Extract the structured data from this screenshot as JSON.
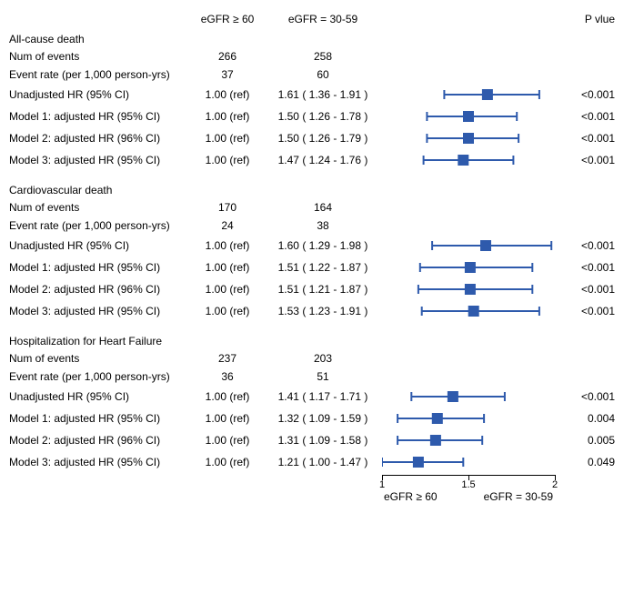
{
  "headers": {
    "col1": "",
    "col2": "eGFR ≥ 60",
    "col3": "eGFR = 30-59",
    "col4": "",
    "col5": "P vlue"
  },
  "forest_axis": {
    "xmin": 1.0,
    "xmax": 2.0,
    "ticks": [
      1,
      1.5,
      2
    ],
    "tick_labels": [
      "1",
      "1.5",
      "2"
    ],
    "left_caption": "eGFR ≥ 60",
    "right_caption": "eGFR = 30-59",
    "line_color": "#000000",
    "series_color": "#2e5aac",
    "box_size": 12,
    "cap_height": 10,
    "line_width": 2
  },
  "sections": [
    {
      "title": "All-cause death",
      "num_events_label": "Num of events",
      "num_events": {
        "ref": "266",
        "grp": "258"
      },
      "rate_label": "Event rate (per 1,000 person-yrs)",
      "rate": {
        "ref": "37",
        "grp": "60"
      },
      "rows": [
        {
          "label": "Unadjusted HR (95% CI)",
          "ref": "1.00 (ref)",
          "hr_text": "1.61 ( 1.36 - 1.91 )",
          "pt": 1.61,
          "lo": 1.36,
          "hi": 1.91,
          "p": "<0.001"
        },
        {
          "label": "Model 1: adjusted HR (95% CI)",
          "ref": "1.00 (ref)",
          "hr_text": "1.50 ( 1.26 - 1.78 )",
          "pt": 1.5,
          "lo": 1.26,
          "hi": 1.78,
          "p": "<0.001"
        },
        {
          "label": "Model 2: adjusted HR (96% CI)",
          "ref": "1.00 (ref)",
          "hr_text": "1.50 ( 1.26 - 1.79 )",
          "pt": 1.5,
          "lo": 1.26,
          "hi": 1.79,
          "p": "<0.001"
        },
        {
          "label": "Model 3: adjusted HR (95% CI)",
          "ref": "1.00 (ref)",
          "hr_text": "1.47 ( 1.24 - 1.76 )",
          "pt": 1.47,
          "lo": 1.24,
          "hi": 1.76,
          "p": "<0.001"
        }
      ]
    },
    {
      "title": "Cardiovascular death",
      "num_events_label": "Num of events",
      "num_events": {
        "ref": "170",
        "grp": "164"
      },
      "rate_label": "Event rate (per 1,000 person-yrs)",
      "rate": {
        "ref": "24",
        "grp": "38"
      },
      "rows": [
        {
          "label": "Unadjusted HR (95% CI)",
          "ref": "1.00 (ref)",
          "hr_text": "1.60 ( 1.29 - 1.98 )",
          "pt": 1.6,
          "lo": 1.29,
          "hi": 1.98,
          "p": "<0.001"
        },
        {
          "label": "Model 1: adjusted HR (95% CI)",
          "ref": "1.00 (ref)",
          "hr_text": "1.51 ( 1.22 - 1.87 )",
          "pt": 1.51,
          "lo": 1.22,
          "hi": 1.87,
          "p": "<0.001"
        },
        {
          "label": "Model 2: adjusted HR (96% CI)",
          "ref": "1.00 (ref)",
          "hr_text": "1.51 ( 1.21 - 1.87 )",
          "pt": 1.51,
          "lo": 1.21,
          "hi": 1.87,
          "p": "<0.001"
        },
        {
          "label": "Model 3: adjusted HR (95% CI)",
          "ref": "1.00 (ref)",
          "hr_text": "1.53 ( 1.23 - 1.91 )",
          "pt": 1.53,
          "lo": 1.23,
          "hi": 1.91,
          "p": "<0.001"
        }
      ]
    },
    {
      "title": "Hospitalization for Heart Failure",
      "num_events_label": "Num of events",
      "num_events": {
        "ref": "237",
        "grp": "203"
      },
      "rate_label": "Event rate (per 1,000 person-yrs)",
      "rate": {
        "ref": "36",
        "grp": "51"
      },
      "rows": [
        {
          "label": "Unadjusted HR (95% CI)",
          "ref": "1.00 (ref)",
          "hr_text": "1.41 ( 1.17 - 1.71 )",
          "pt": 1.41,
          "lo": 1.17,
          "hi": 1.71,
          "p": "<0.001"
        },
        {
          "label": "Model 1: adjusted HR (95% CI)",
          "ref": "1.00 (ref)",
          "hr_text": "1.32 ( 1.09 - 1.59 )",
          "pt": 1.32,
          "lo": 1.09,
          "hi": 1.59,
          "p": "0.004"
        },
        {
          "label": "Model 2: adjusted HR (96% CI)",
          "ref": "1.00 (ref)",
          "hr_text": "1.31 ( 1.09 - 1.58 )",
          "pt": 1.31,
          "lo": 1.09,
          "hi": 1.58,
          "p": "0.005"
        },
        {
          "label": "Model 3: adjusted HR (95% CI)",
          "ref": "1.00 (ref)",
          "hr_text": "1.21 ( 1.00 - 1.47 )",
          "pt": 1.21,
          "lo": 1.0,
          "hi": 1.47,
          "p": "0.049"
        }
      ]
    }
  ]
}
